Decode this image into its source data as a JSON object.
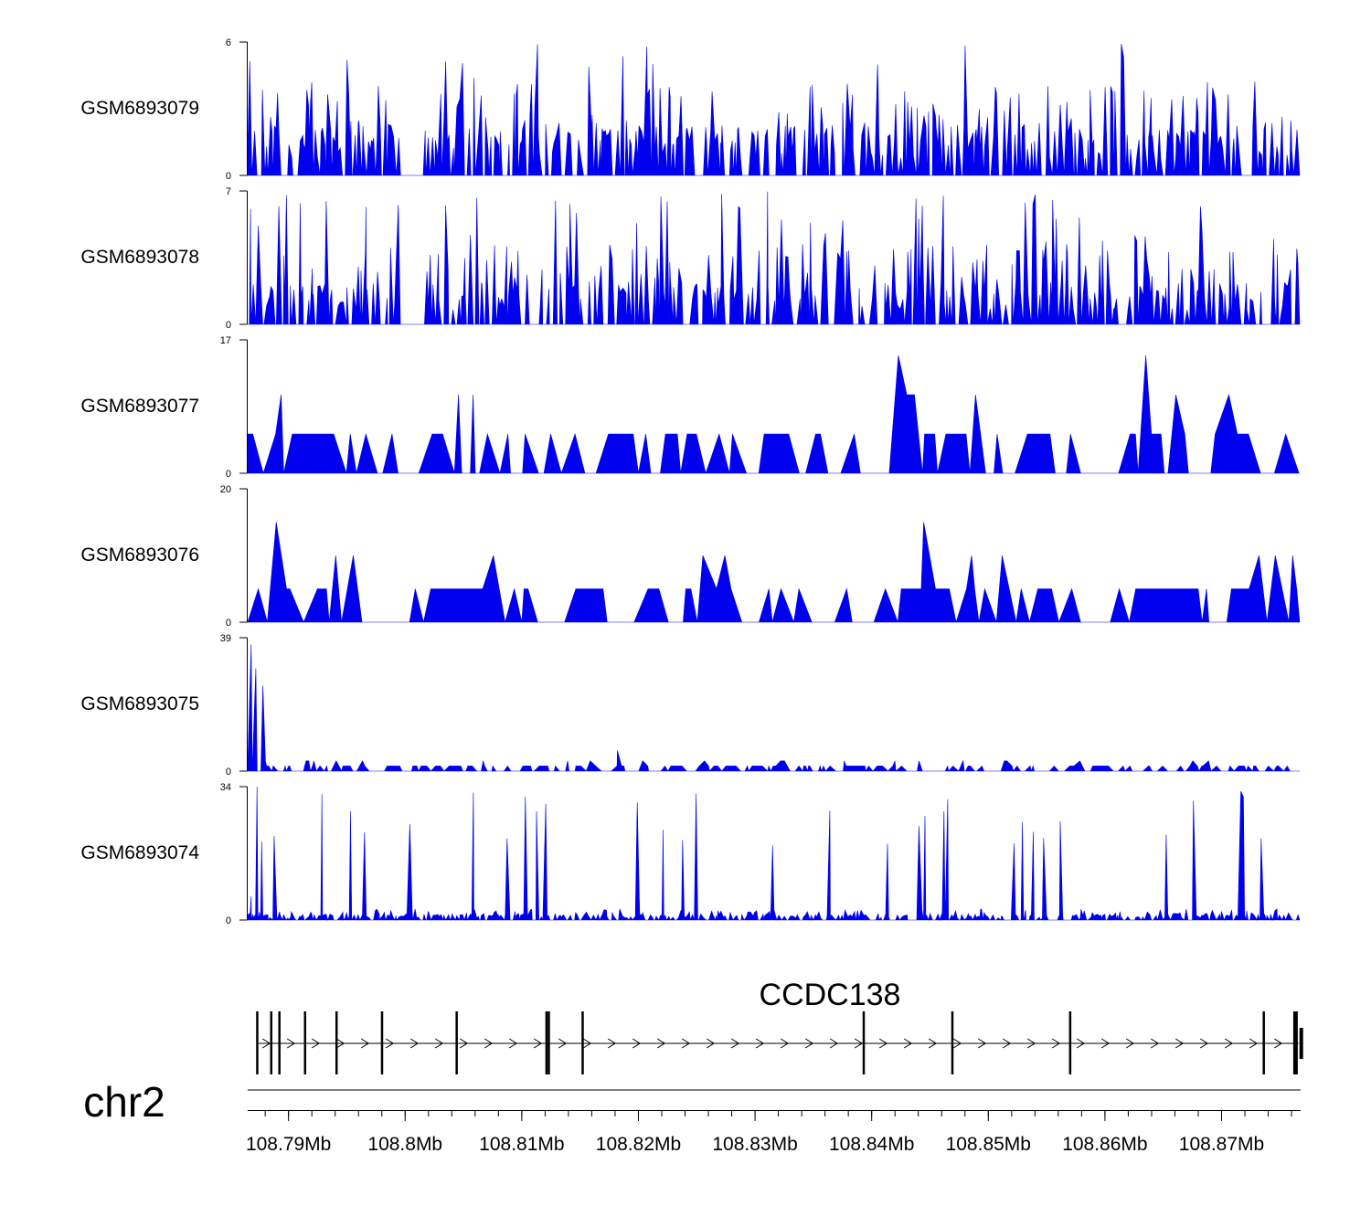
{
  "chart_data": {
    "type": "area",
    "title": "",
    "chromosome": "chr2",
    "region": {
      "start": 108.7865,
      "end": 108.8767,
      "unit": "Mb"
    },
    "fill_color": "#0000ee",
    "tracks": [
      {
        "name": "GSM6893079",
        "ymax": 6,
        "ymin": 0,
        "ymax_label": "6",
        "ymin_label": "0",
        "peaks": [],
        "baseline": 1.5,
        "density": "high",
        "gap": [
          108.7998,
          108.8017
        ]
      },
      {
        "name": "GSM6893078",
        "ymax": 7,
        "ymin": 0,
        "ymax_label": "7",
        "ymin_label": "0",
        "peaks": [],
        "baseline": 1.5,
        "density": "high",
        "gap": [
          108.7998,
          108.8017
        ]
      },
      {
        "name": "GSM6893077",
        "ymax": 17,
        "ymin": 0,
        "ymax_label": "17",
        "ymin_label": "0",
        "peaks": [],
        "baseline": 5,
        "density": "low"
      },
      {
        "name": "GSM6893076",
        "ymax": 20,
        "ymin": 0,
        "ymax_label": "20",
        "ymin_label": "0",
        "peaks": [],
        "baseline": 5,
        "density": "low"
      },
      {
        "name": "GSM6893075",
        "ymax": 39,
        "ymin": 0,
        "ymax_label": "39",
        "ymin_label": "0",
        "peaks": [
          [
            108.7868,
            37
          ],
          [
            108.7872,
            30
          ],
          [
            108.7878,
            25
          ],
          [
            108.8182,
            6
          ]
        ],
        "baseline": 1.5,
        "density": "medium"
      },
      {
        "name": "GSM6893074",
        "ymax": 34,
        "ymin": 0,
        "ymax_label": "34",
        "ymin_label": "0",
        "peaks": [
          [
            108.7873,
            34
          ],
          [
            108.7877,
            20
          ],
          [
            108.7868,
            6
          ]
        ],
        "baseline": 1,
        "density": "high"
      }
    ],
    "gene": {
      "name": "CCDC138",
      "strand": "+",
      "start": 108.7873,
      "end": 108.8766,
      "exons": [
        108.7873,
        108.7885,
        108.7892,
        108.7914,
        108.7941,
        108.798,
        108.8044,
        108.8121,
        108.8123,
        108.8152,
        108.8393,
        108.8469,
        108.857,
        108.8736,
        108.8763
      ]
    },
    "axis": {
      "ticks": [
        108.79,
        108.8,
        108.81,
        108.82,
        108.83,
        108.84,
        108.85,
        108.86,
        108.87
      ],
      "tick_labels": [
        "108.79Mb",
        "108.8Mb",
        "108.81Mb",
        "108.82Mb",
        "108.83Mb",
        "108.84Mb",
        "108.85Mb",
        "108.86Mb",
        "108.87Mb"
      ],
      "minor_step": 0.002
    }
  }
}
